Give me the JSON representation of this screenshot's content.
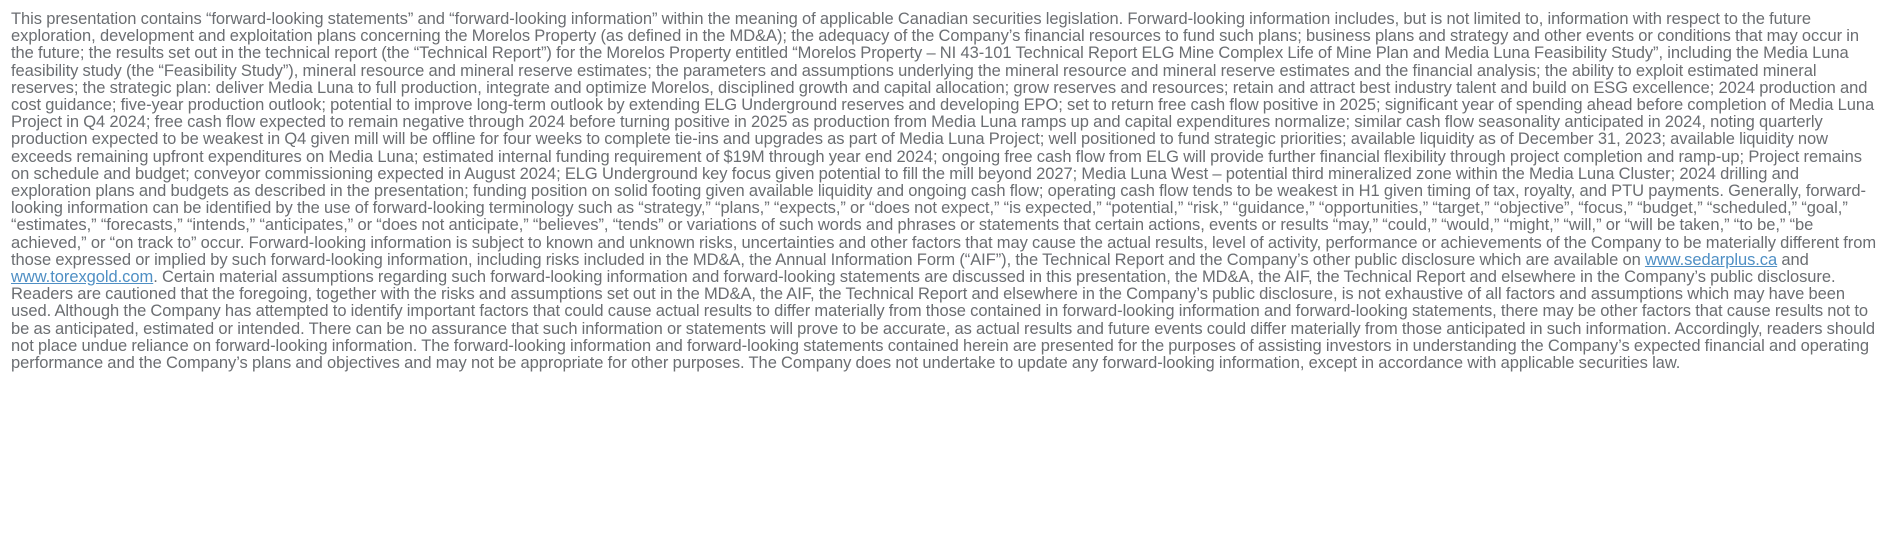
{
  "disclaimer": {
    "part1": "This presentation contains “forward-looking statements” and “forward-looking information” within the meaning of applicable Canadian securities legislation. Forward-looking information includes, but is not limited to, information with respect to the future exploration, development and exploitation plans concerning the Morelos Property (as defined in the MD&A); the adequacy of the Company’s financial resources to fund such plans; business plans and strategy and other events or conditions that may occur in the future; the results set out in the technical report (the “Technical Report”) for the Morelos Property entitled “Morelos Property – NI 43-101 Technical Report ELG Mine Complex Life of Mine Plan and Media Luna Feasibility Study”, including the Media Luna feasibility study (the “Feasibility Study”), mineral resource and mineral reserve estimates; the parameters and assumptions underlying the mineral resource and mineral reserve estimates and the financial analysis; the ability to exploit estimated mineral reserves; the strategic plan: deliver Media Luna to full production, integrate and optimize Morelos, disciplined growth and capital allocation; grow reserves and resources; retain and attract best industry talent and build on ESG excellence; 2024 production and cost guidance; five-year production outlook; potential to improve long-term outlook by extending ELG Underground reserves and developing EPO; set to return free cash flow positive in 2025; significant year of spending ahead before completion of Media Luna Project in Q4 2024; free cash flow expected to remain negative through 2024 before turning positive in 2025 as production from Media Luna ramps up and capital expenditures normalize; similar cash flow seasonality anticipated in 2024, noting quarterly production expected to be weakest in Q4 given mill will be offline for four weeks to complete tie-ins and upgrades as part of Media Luna Project; well positioned to fund strategic priorities; available liquidity as of December 31, 2023; available liquidity now exceeds remaining upfront expenditures on Media Luna; estimated internal funding requirement of $19M through year end 2024; ongoing free cash flow from ELG will provide further financial flexibility through project completion and ramp-up; Project remains on schedule and budget; conveyor commissioning expected in August 2024; ELG Underground key focus given potential to fill the mill beyond 2027; Media Luna West – potential third mineralized zone within the Media Luna Cluster; 2024 drilling and exploration plans and budgets as described in the presentation; funding position on solid footing given available liquidity and ongoing cash flow; operating cash flow tends to be weakest in H1 given timing of tax, royalty, and PTU payments. Generally, forward-looking  information can be identified by the use of forward-looking terminology such as “strategy,” “plans,” “expects,” or “does not expect,” “is expected,” “potential,” “risk,” “guidance,” “opportunities,” “target,” “objective”, “focus,” “budget,”  “scheduled,” “goal,” “estimates,” “forecasts,” “intends,” “anticipates,” or “does not anticipate,” “believes”, “tends” or variations of such words and phrases or statements that certain actions, events or results “may,” “could,” “would,” “might,” “will,” or “will be taken,” “to be,” “be achieved,” or “on track to” occur.  Forward-looking information is subject to known and unknown risks, uncertainties and other factors that may cause the actual results, level of activity, performance or achievements of the Company to be materially different from those expressed or implied by such forward-looking information, including risks included in the MD&A, the Annual Information Form (“AIF”), the  Technical Report and the Company’s other public disclosure which are available on ",
    "link1": "www.sedarplus.ca",
    "between": " and ",
    "link2": "www.torexgold.com",
    "part2": ". Certain material assumptions regarding such forward-looking information and forward-looking statements are discussed in this presentation, the MD&A, the AIF, the Technical Report and elsewhere in the Company’s public disclosure. Readers are cautioned that the foregoing, together with the risks and assumptions set out in the MD&A, the AIF, the Technical Report and elsewhere in the Company’s public disclosure, is not exhaustive of all factors and assumptions which may have been used. Although the Company has attempted to identify important factors that could cause actual results to differ materially from those contained in forward-looking information and forward-looking statements, there may be other factors that cause results not to be as anticipated, estimated or intended. There can be no assurance that such information or statements will prove to be accurate, as actual results and future events could differ materially from those anticipated in such information. Accordingly, readers should not place undue reliance on forward-looking information. The forward-looking information and forward-looking statements contained herein are presented for the purposes of assisting investors in understanding the Company’s expected financial and operating performance and the Company’s plans and objectives and may not be appropriate for other purposes. The Company does not undertake to update any forward-looking information, except in accordance with applicable securities law."
  },
  "colors": {
    "text": "#6b6e72",
    "link": "#4f8fc4",
    "background": "#ffffff"
  }
}
